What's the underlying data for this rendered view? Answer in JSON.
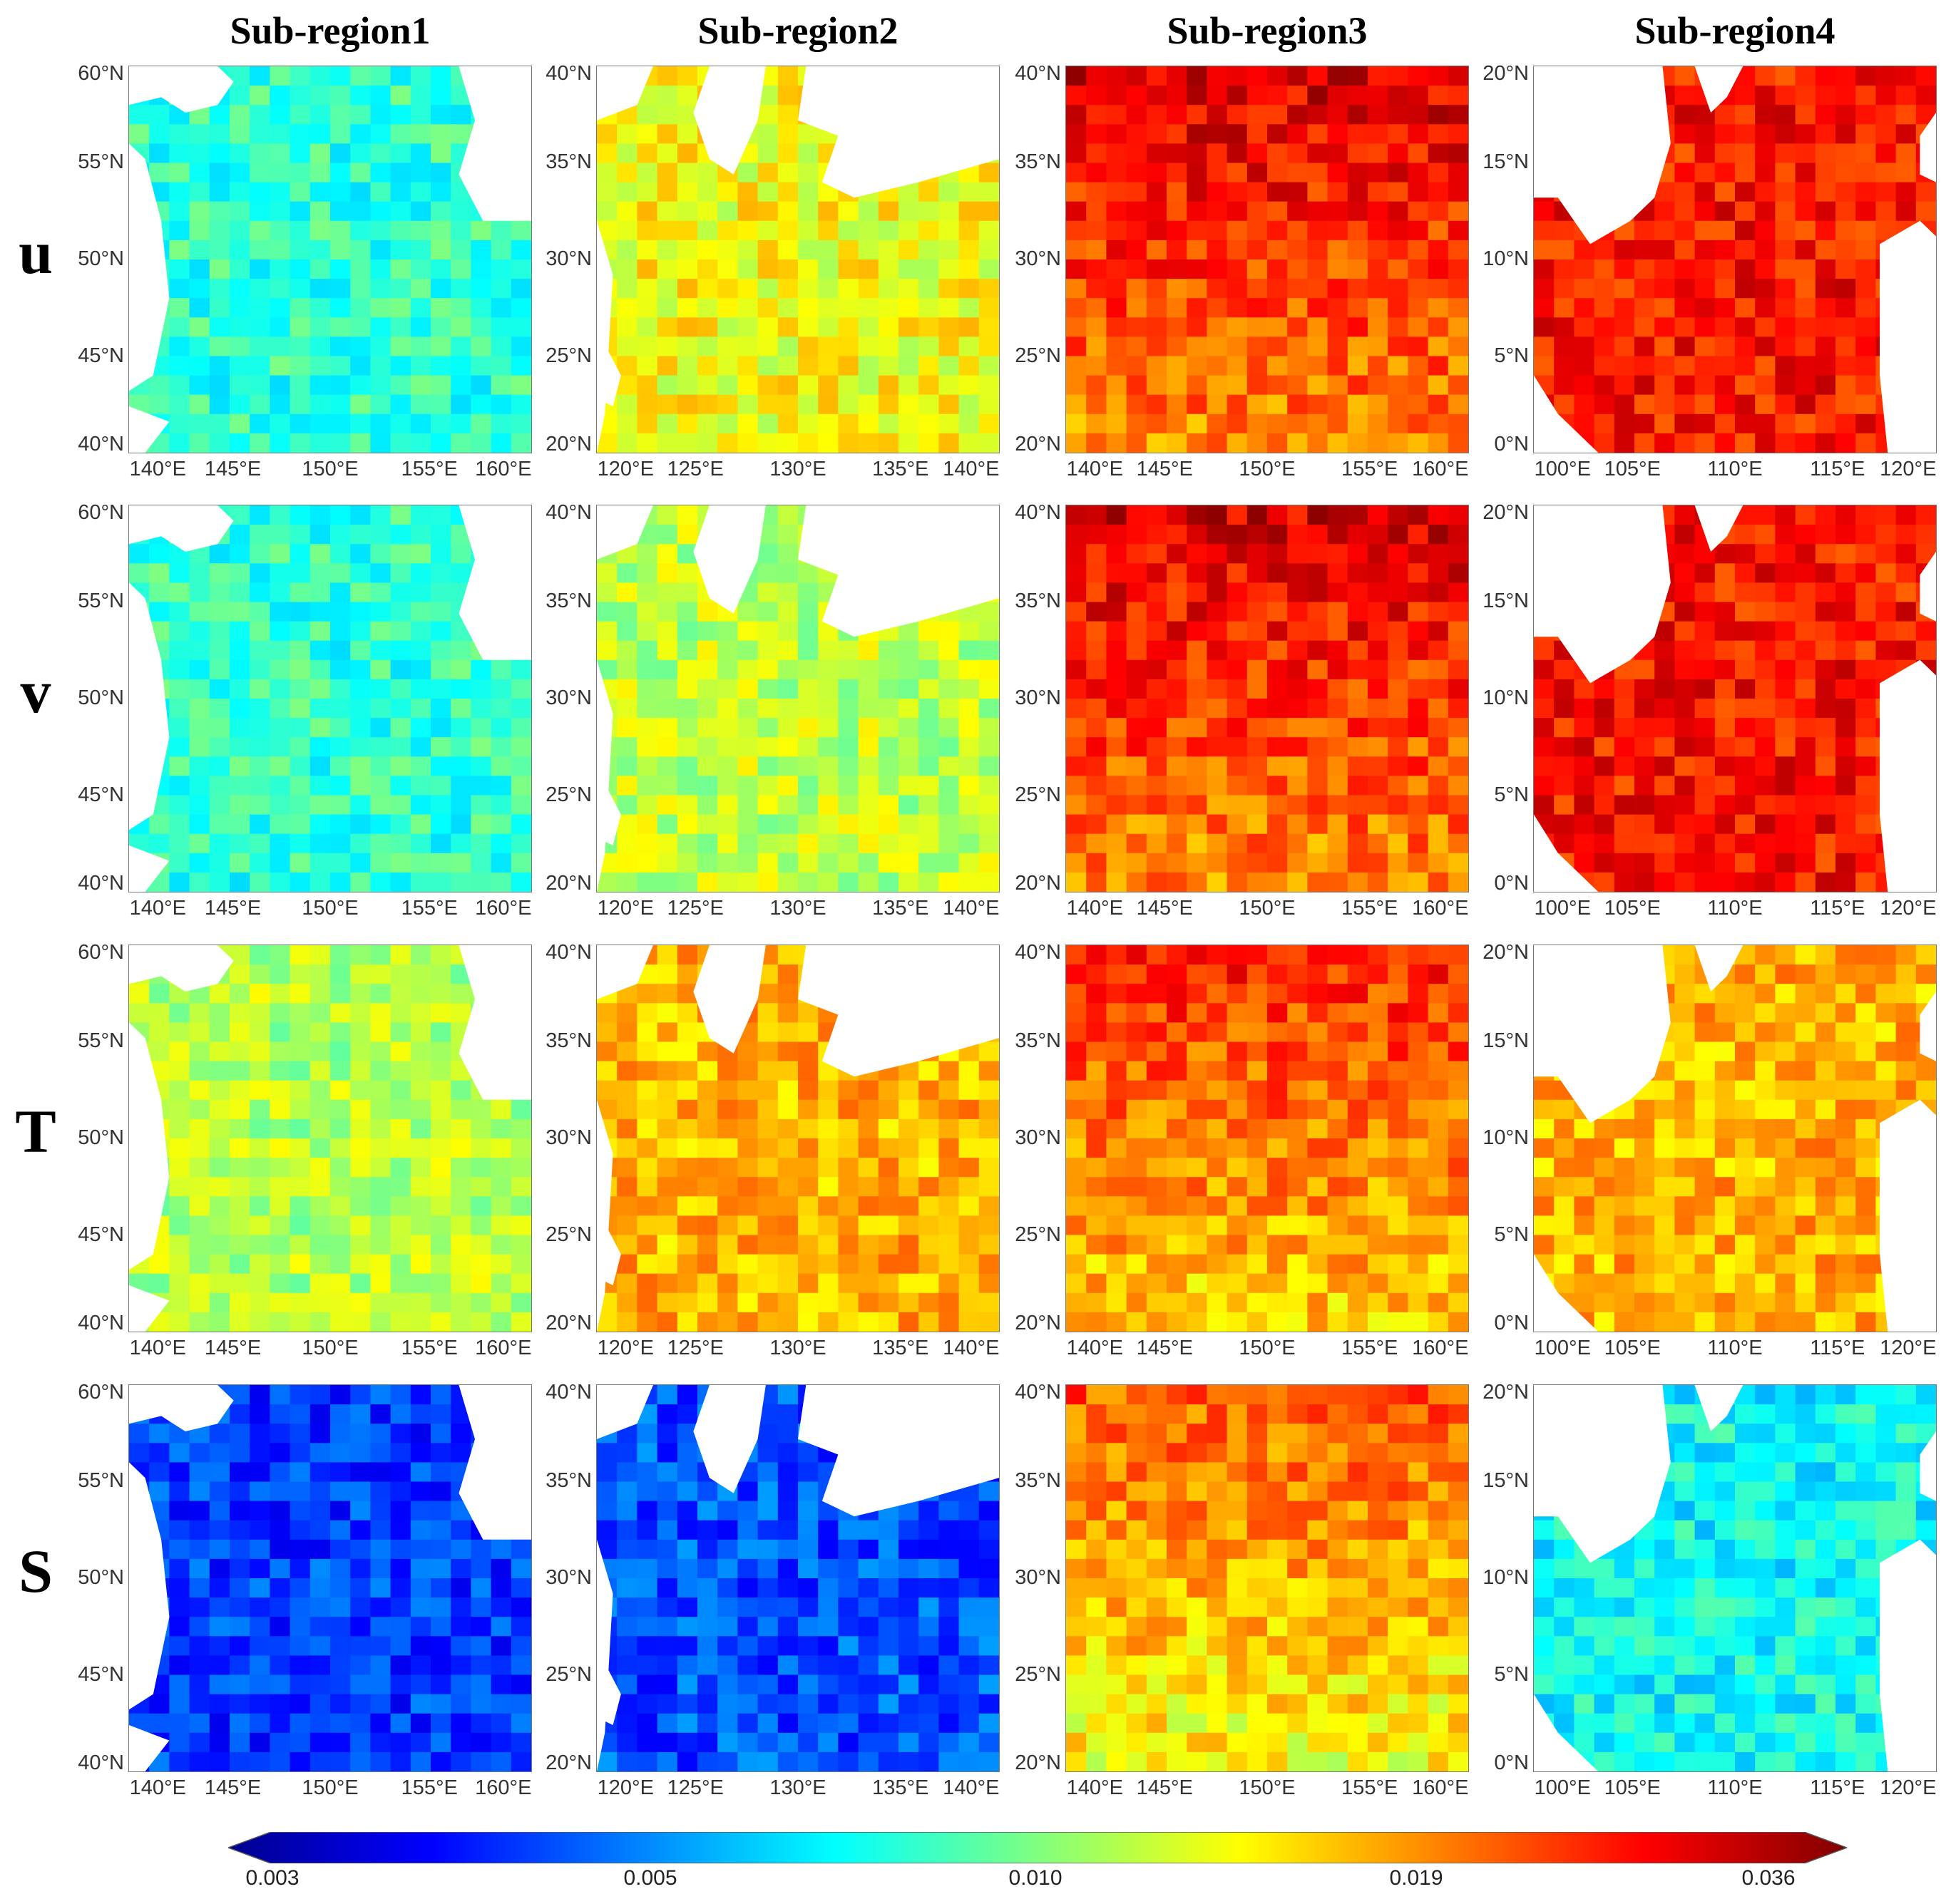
{
  "columns": [
    "Sub-region1",
    "Sub-region2",
    "Sub-region3",
    "Sub-region4"
  ],
  "rows": [
    "u",
    "v",
    "T",
    "S"
  ],
  "regions": [
    {
      "lat_ticks": [
        "60°N",
        "55°N",
        "50°N",
        "45°N",
        "40°N"
      ],
      "lon_ticks": [
        "140°E",
        "145°E",
        "150°E",
        "155°E",
        "160°E"
      ],
      "lon_positions": [
        0.073,
        0.259,
        0.5,
        0.746,
        0.929
      ]
    },
    {
      "lat_ticks": [
        "40°N",
        "35°N",
        "30°N",
        "25°N",
        "20°N"
      ],
      "lon_ticks": [
        "120°E",
        "125°E",
        "130°E",
        "135°E",
        "140°E"
      ],
      "lon_positions": [
        0.073,
        0.246,
        0.5,
        0.754,
        0.929
      ]
    },
    {
      "lat_ticks": [
        "40°N",
        "35°N",
        "30°N",
        "25°N",
        "20°N"
      ],
      "lon_ticks": [
        "140°E",
        "145°E",
        "150°E",
        "155°E",
        "160°E"
      ],
      "lon_positions": [
        0.073,
        0.246,
        0.5,
        0.754,
        0.929
      ]
    },
    {
      "lat_ticks": [
        "20°N",
        "15°N",
        "10°N",
        "5°N",
        "0°N"
      ],
      "lon_ticks": [
        "100°E",
        "105°E",
        "110°E",
        "115°E",
        "120°E"
      ],
      "lon_positions": [
        0.073,
        0.246,
        0.5,
        0.754,
        0.929
      ]
    }
  ],
  "mean_levels": [
    [
      0.42,
      0.62,
      0.82,
      0.86
    ],
    [
      0.42,
      0.56,
      0.82,
      0.86
    ],
    [
      0.55,
      0.7,
      0.75,
      0.7
    ],
    [
      0.18,
      0.2,
      0.7,
      0.38
    ]
  ],
  "colorbar": {
    "labels": [
      "0.003",
      "0.005",
      "0.010",
      "0.019",
      "0.036"
    ],
    "colors": [
      "#00008f",
      "#0000ff",
      "#0080ff",
      "#00ffff",
      "#80ff80",
      "#ffff00",
      "#ff8000",
      "#ff0000",
      "#800000"
    ],
    "scale": "log"
  }
}
